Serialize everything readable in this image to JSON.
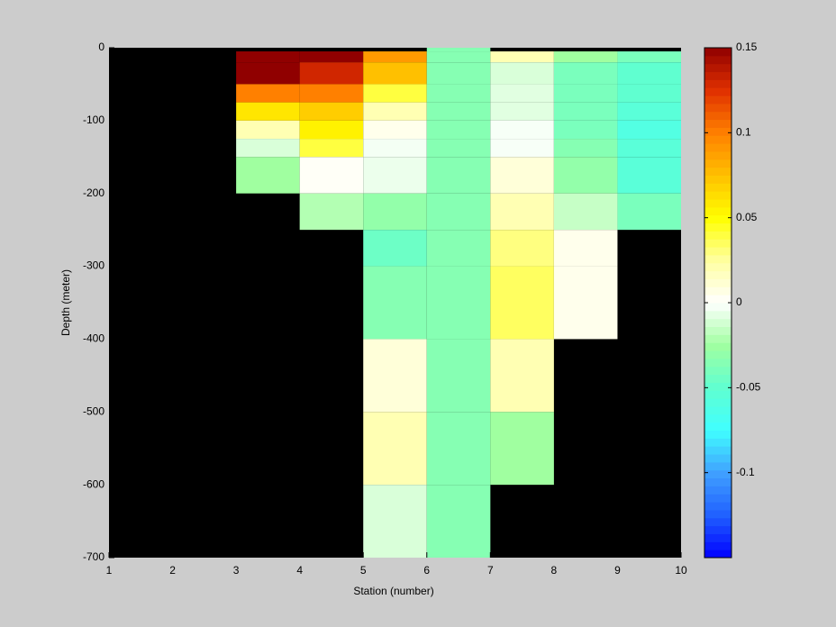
{
  "chart_data": {
    "type": "heatmap",
    "xlabel": "Station (number)",
    "ylabel": "Depth (meter)",
    "x_edges": [
      1,
      2,
      3,
      4,
      5,
      6,
      7,
      8,
      9,
      10
    ],
    "y_edges": [
      0,
      -5,
      -20,
      -50,
      -75,
      -100,
      -125,
      -150,
      -200,
      -250,
      -300,
      -350,
      -400,
      -500,
      -600,
      -700
    ],
    "values": [
      [
        null,
        null,
        null,
        null,
        null,
        -0.035,
        null,
        null,
        null
      ],
      [
        null,
        null,
        0.15,
        0.15,
        0.09,
        -0.035,
        0.02,
        -0.025,
        -0.04
      ],
      [
        null,
        null,
        0.15,
        0.13,
        0.075,
        -0.035,
        -0.01,
        -0.04,
        -0.05
      ],
      [
        null,
        null,
        0.1,
        0.1,
        0.04,
        -0.035,
        -0.008,
        -0.04,
        -0.05
      ],
      [
        null,
        null,
        0.06,
        0.07,
        0.02,
        -0.035,
        -0.008,
        -0.04,
        -0.055
      ],
      [
        null,
        null,
        0.02,
        0.055,
        0.005,
        -0.035,
        -0.002,
        -0.04,
        -0.06
      ],
      [
        null,
        null,
        -0.01,
        0.04,
        -0.003,
        -0.035,
        -0.002,
        -0.035,
        -0.055
      ],
      [
        null,
        null,
        -0.025,
        0.002,
        -0.005,
        -0.035,
        0.01,
        -0.03,
        -0.055
      ],
      [
        null,
        null,
        null,
        -0.02,
        -0.03,
        -0.035,
        0.02,
        -0.015,
        -0.04
      ],
      [
        null,
        null,
        null,
        null,
        -0.045,
        -0.035,
        0.03,
        0.005,
        null
      ],
      [
        null,
        null,
        null,
        null,
        -0.035,
        -0.035,
        0.035,
        0.005,
        null
      ],
      [
        null,
        null,
        null,
        null,
        -0.035,
        -0.035,
        0.035,
        0.005,
        null
      ],
      [
        null,
        null,
        null,
        null,
        0.01,
        -0.035,
        0.02,
        null,
        null
      ],
      [
        null,
        null,
        null,
        null,
        0.02,
        -0.035,
        -0.025,
        null,
        null
      ],
      [
        null,
        null,
        null,
        null,
        -0.01,
        -0.035,
        null,
        null,
        null
      ]
    ],
    "xlim": [
      1,
      10
    ],
    "xticks": [
      1,
      2,
      3,
      4,
      5,
      6,
      7,
      8,
      9,
      10
    ],
    "ylim": [
      -700,
      0
    ],
    "yticks": [
      0,
      -100,
      -200,
      -300,
      -400,
      -500,
      -600,
      -700
    ],
    "clim": [
      -0.15,
      0.15
    ],
    "cticks": [
      -0.1,
      -0.05,
      0,
      0.05,
      0.1,
      0.15
    ],
    "colormap": [
      "#0000ff",
      "#2060ff",
      "#40a0ff",
      "#40ffff",
      "#60ffd0",
      "#a0ffa0",
      "#ffffff",
      "#ffffa0",
      "#ffff00",
      "#ffc000",
      "#ff8000",
      "#e03000",
      "#900000"
    ],
    "axes_color": "#000000"
  }
}
